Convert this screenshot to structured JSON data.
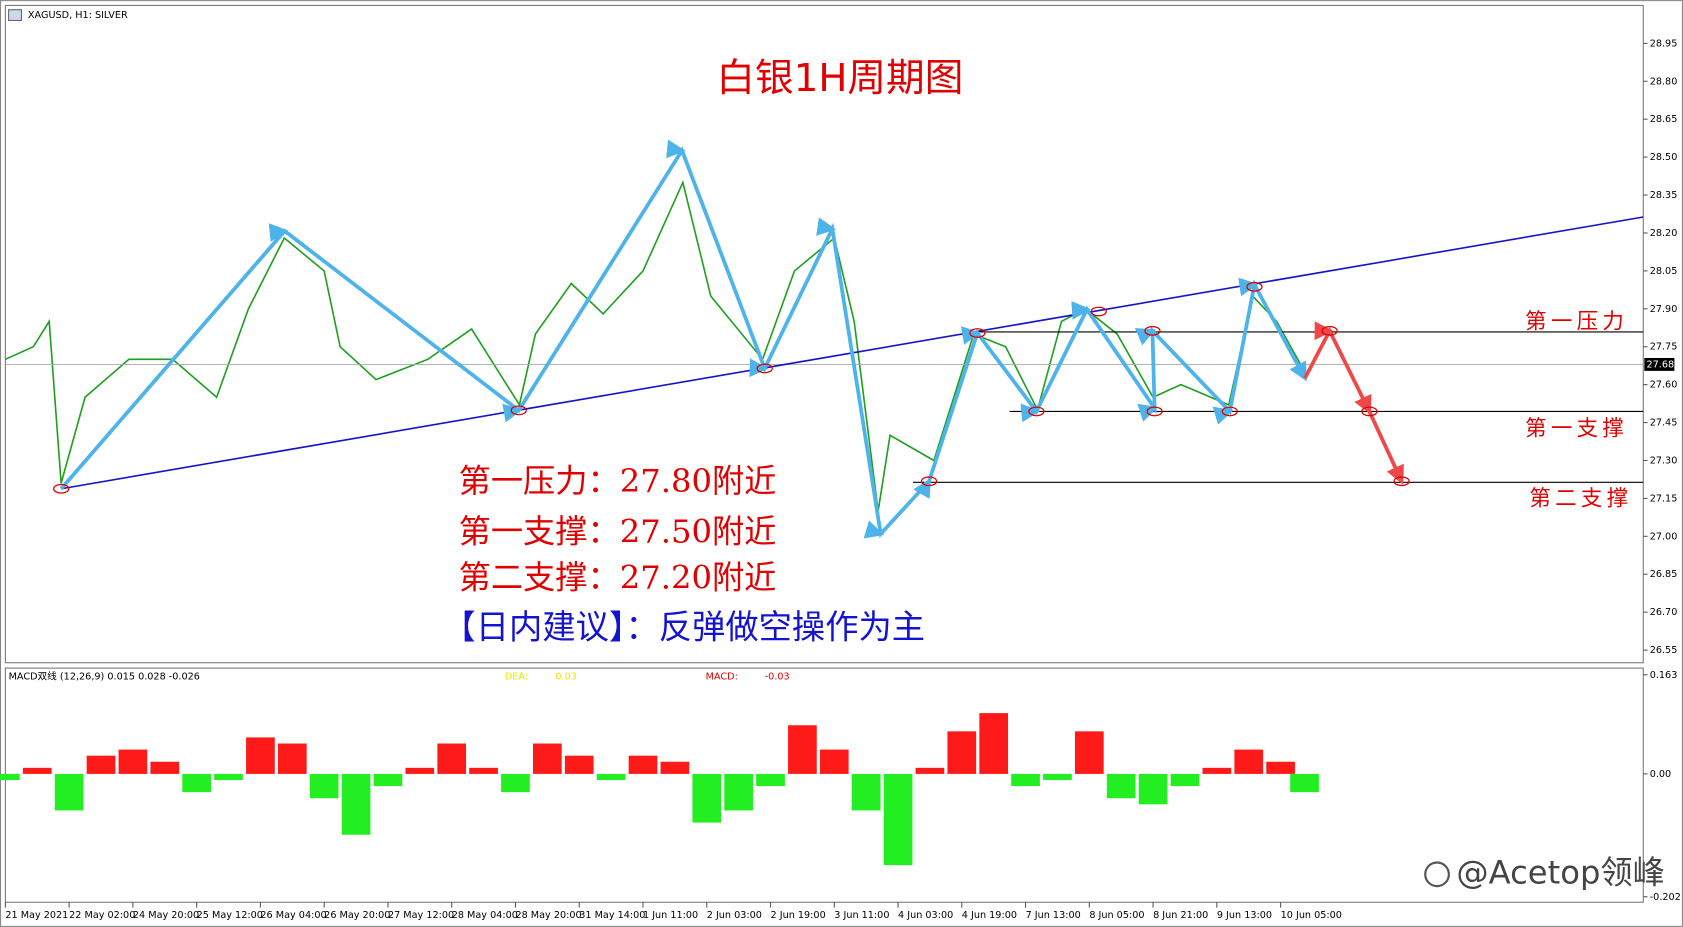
{
  "chart_data": [
    {
      "type": "line",
      "header": "XAGUSD, H1:  SILVER",
      "title": "白银1H周期图",
      "x": [
        0,
        7,
        11,
        14,
        20,
        31,
        42,
        53,
        61,
        70,
        80,
        84,
        93,
        106,
        117,
        129,
        133,
        142,
        150,
        160,
        170,
        177,
        190,
        198,
        208,
        213,
        219,
        222,
        233,
        243,
        251,
        259,
        265,
        271,
        279,
        288,
        295,
        307,
        313,
        319,
        325
      ],
      "values": [
        27.7,
        27.75,
        27.85,
        27.21,
        27.55,
        27.7,
        27.7,
        27.55,
        27.9,
        28.18,
        28.05,
        27.75,
        27.62,
        27.7,
        27.82,
        27.52,
        27.8,
        28.0,
        27.88,
        28.05,
        28.4,
        27.95,
        27.7,
        28.05,
        28.18,
        27.85,
        27.1,
        27.4,
        27.3,
        27.8,
        27.75,
        27.5,
        27.85,
        27.9,
        27.8,
        27.55,
        27.6,
        27.52,
        27.95,
        27.85,
        27.68
      ],
      "color": "#1f9e1f",
      "xlim": [
        0,
        411
      ],
      "xticks": [
        {
          "value": 0,
          "label": "21 May 2021"
        },
        {
          "value": 16,
          "label": "22 May 02:00"
        },
        {
          "value": 32,
          "label": "24 May 20:00"
        },
        {
          "value": 48,
          "label": "25 May 12:00"
        },
        {
          "value": 64,
          "label": "26 May 04:00"
        },
        {
          "value": 80,
          "label": "26 May 20:00"
        },
        {
          "value": 96,
          "label": "27 May 12:00"
        },
        {
          "value": 112,
          "label": "28 May 04:00"
        },
        {
          "value": 128,
          "label": "28 May 20:00"
        },
        {
          "value": 144,
          "label": "31 May 14:00"
        },
        {
          "value": 160,
          "label": "1 Jun 11:00"
        },
        {
          "value": 176,
          "label": "2 Jun 03:00"
        },
        {
          "value": 192,
          "label": "2 Jun 19:00"
        },
        {
          "value": 208,
          "label": "3 Jun 11:00"
        },
        {
          "value": 224,
          "label": "4 Jun 03:00"
        },
        {
          "value": 240,
          "label": "4 Jun 19:00"
        },
        {
          "value": 256,
          "label": "7 Jun 13:00"
        },
        {
          "value": 272,
          "label": "8 Jun 05:00"
        },
        {
          "value": 288,
          "label": "8 Jun 21:00"
        },
        {
          "value": 304,
          "label": "9 Jun 13:00"
        },
        {
          "value": 320,
          "label": "10 Jun 05:00"
        }
      ],
      "ylim": [
        26.5,
        29.1
      ],
      "yticks": [
        28.95,
        {
          "value": 28.8,
          "label": "28.80"
        },
        28.65,
        {
          "value": 28.5,
          "label": "28.50"
        },
        28.35,
        {
          "value": 28.2,
          "label": "28.20"
        },
        28.05,
        {
          "value": 27.9,
          "label": "27.90"
        },
        27.75,
        {
          "value": 27.6,
          "label": "27.60"
        },
        27.45,
        {
          "value": 27.3,
          "label": "27.30"
        },
        27.15,
        {
          "value": 27.0,
          "label": "27.00"
        },
        26.85,
        {
          "value": 26.7,
          "label": "26.70"
        },
        26.55
      ],
      "last_price": 27.68,
      "notes": [
        "第一压力：27.80附近",
        "第一支撑：27.50附近",
        "第二支撑：27.20附近"
      ],
      "advice": "【日内建议】：反弹做空操作为主",
      "level_labels": [
        "第一压力",
        "第一支撑",
        "第二支撑"
      ]
    },
    {
      "type": "bar",
      "header": "MACD双线 (12,26,9) 0.015 0.028 -0.026",
      "legend_items": [
        {
          "name": "DEA:",
          "value": 0.03,
          "color": "#e8e800"
        },
        {
          "name": "MACD:",
          "value": -0.03,
          "color": "#e00000"
        }
      ],
      "x": [
        0,
        8,
        16,
        24,
        32,
        40,
        48,
        56,
        64,
        72,
        80,
        88,
        96,
        104,
        112,
        120,
        128,
        136,
        144,
        152,
        160,
        168,
        176,
        184,
        192,
        200,
        208,
        216,
        224,
        232,
        240,
        248,
        256,
        264,
        272,
        280,
        288,
        296,
        304,
        312,
        320,
        326
      ],
      "values": [
        -0.01,
        0.01,
        -0.06,
        0.03,
        0.04,
        0.02,
        -0.03,
        -0.01,
        0.06,
        0.05,
        -0.04,
        -0.1,
        -0.02,
        0.01,
        0.05,
        0.01,
        -0.03,
        0.05,
        0.03,
        -0.01,
        0.03,
        0.02,
        -0.08,
        -0.06,
        -0.02,
        0.08,
        0.04,
        -0.06,
        -0.15,
        0.01,
        0.07,
        0.1,
        -0.02,
        -0.01,
        0.07,
        -0.04,
        -0.05,
        -0.02,
        0.01,
        0.04,
        0.02,
        -0.03
      ],
      "color_up": "#ff1a1a",
      "color_down": "#22ee22",
      "xlim": [
        0,
        411
      ],
      "ylim": [
        -0.211,
        0.174
      ],
      "yticks": [
        0.163,
        {
          "value": 0,
          "label": "0.00"
        },
        -0.202
      ]
    }
  ],
  "watermark": "@Acetop领峰"
}
